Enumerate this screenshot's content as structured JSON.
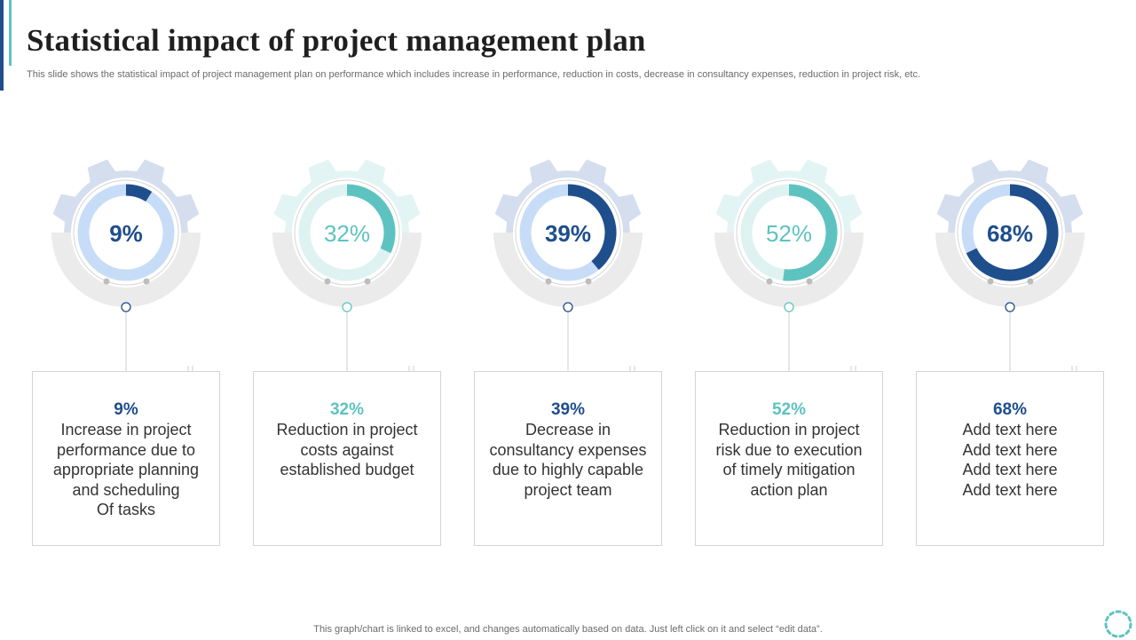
{
  "slide": {
    "title": "Statistical impact of project management plan",
    "subtitle": "This slide shows the statistical impact of project management plan on performance which includes increase in performance, reduction in costs, decrease in consultancy expenses, reduction in project risk, etc.",
    "footer_note": "This graph/chart is linked to excel,  and changes automatically based on data. Just left click on it and select “edit data”."
  },
  "colors": {
    "dark_blue": "#1f4e8c",
    "teal": "#5ec3c0",
    "light_blue_track": "#c7dcf7",
    "light_teal_track": "#dff2f2",
    "gear_blue": "#d4deee",
    "gear_teal": "#e3f4f4",
    "arc_grey": "#ebebeb"
  },
  "chart_data": {
    "type": "donut-gauges",
    "items": [
      {
        "value": 9,
        "label": "9%",
        "theme": "blue",
        "description": "Increase in project\nperformance due to\nappropriate planning\nand scheduling\nOf tasks"
      },
      {
        "value": 32,
        "label": "32%",
        "theme": "teal",
        "description": "Reduction in project\ncosts against\nestablished budget"
      },
      {
        "value": 39,
        "label": "39%",
        "theme": "blue",
        "description": "Decrease in\nconsultancy expenses\ndue to highly capable\nproject team"
      },
      {
        "value": 52,
        "label": "52%",
        "theme": "teal",
        "description": "Reduction in project\nrisk due to execution\nof timely mitigation\naction plan"
      },
      {
        "value": 68,
        "label": "68%",
        "theme": "blue",
        "description": "Add text here\nAdd text here\nAdd text here\nAdd text here"
      }
    ]
  }
}
